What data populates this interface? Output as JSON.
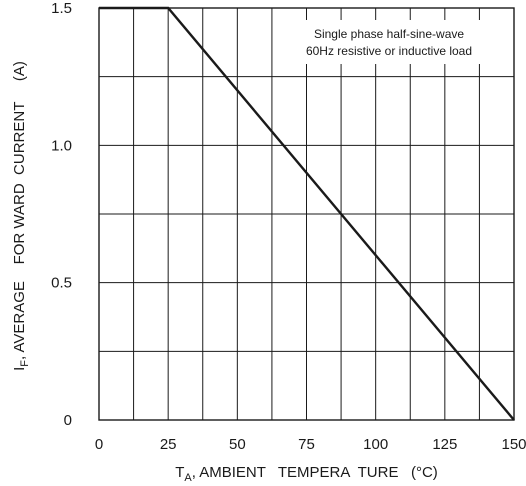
{
  "chart_data": {
    "type": "line",
    "xlabel": {
      "main": "T",
      "sub": "A",
      "rest": ", AMBIENT   TEMPERA  TURE   (°C)"
    },
    "ylabel": {
      "main": "I",
      "sub": "F",
      "rest": ", AVERAGE    FOR WARD  CURRENT     (A)"
    },
    "xlim": [
      0,
      150
    ],
    "ylim": [
      0,
      1.5
    ],
    "x_ticks": [
      "0",
      "25",
      "50",
      "75",
      "100",
      "125",
      "150"
    ],
    "y_ticks": [
      "0",
      "0.5",
      "1.0",
      "1.5"
    ],
    "grid": true,
    "series": [
      {
        "x": [
          0,
          25,
          150
        ],
        "y": [
          1.5,
          1.5,
          0
        ]
      }
    ],
    "annotation": [
      "Single  phase  half-sine-wave",
      "60Hz  resistive  or inductive load"
    ]
  }
}
